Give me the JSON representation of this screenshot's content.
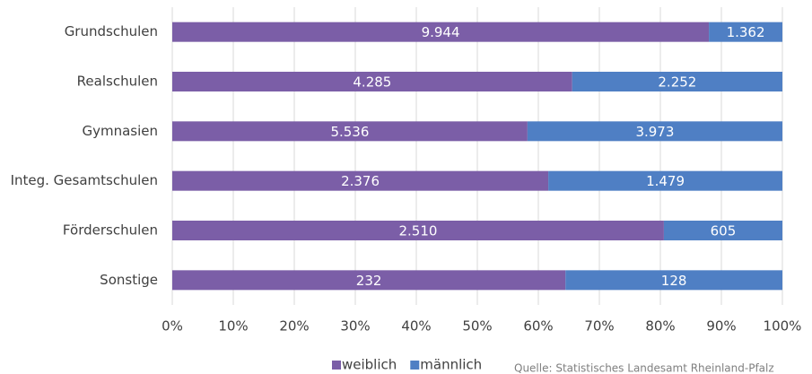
{
  "chart_data": {
    "type": "bar",
    "orientation": "horizontal",
    "stacked": "percent",
    "categories": [
      "Grundschulen",
      "Realschulen",
      "Gymnasien",
      "Integ. Gesamtschulen",
      "Förderschulen",
      "Sonstige"
    ],
    "series": [
      {
        "name": "weiblich",
        "color": "#7b5ea7",
        "values": [
          9944,
          4285,
          5536,
          2376,
          2510,
          232
        ],
        "value_labels": [
          "9.944",
          "4.285",
          "5.536",
          "2.376",
          "2.510",
          "232"
        ]
      },
      {
        "name": "männlich",
        "color": "#4f7fc4",
        "values": [
          1362,
          2252,
          3973,
          1479,
          605,
          128
        ],
        "value_labels": [
          "1.362",
          "2.252",
          "3.973",
          "1.479",
          "605",
          "128"
        ]
      }
    ],
    "xlim": [
      0,
      100
    ],
    "xticks": [
      {
        "value": 0,
        "label": "0%"
      },
      {
        "value": 10,
        "label": "10%"
      },
      {
        "value": 20,
        "label": "20%"
      },
      {
        "value": 30,
        "label": "30%"
      },
      {
        "value": 40,
        "label": "40%"
      },
      {
        "value": 50,
        "label": "50%"
      },
      {
        "value": 60,
        "label": "60%"
      },
      {
        "value": 70,
        "label": "70%"
      },
      {
        "value": 80,
        "label": "80%"
      },
      {
        "value": 90,
        "label": "90%"
      },
      {
        "value": 100,
        "label": "100%"
      }
    ],
    "grid": true,
    "legend": "bottom",
    "source": "Quelle: Statistisches Landesamt Rheinland-Pfalz"
  }
}
